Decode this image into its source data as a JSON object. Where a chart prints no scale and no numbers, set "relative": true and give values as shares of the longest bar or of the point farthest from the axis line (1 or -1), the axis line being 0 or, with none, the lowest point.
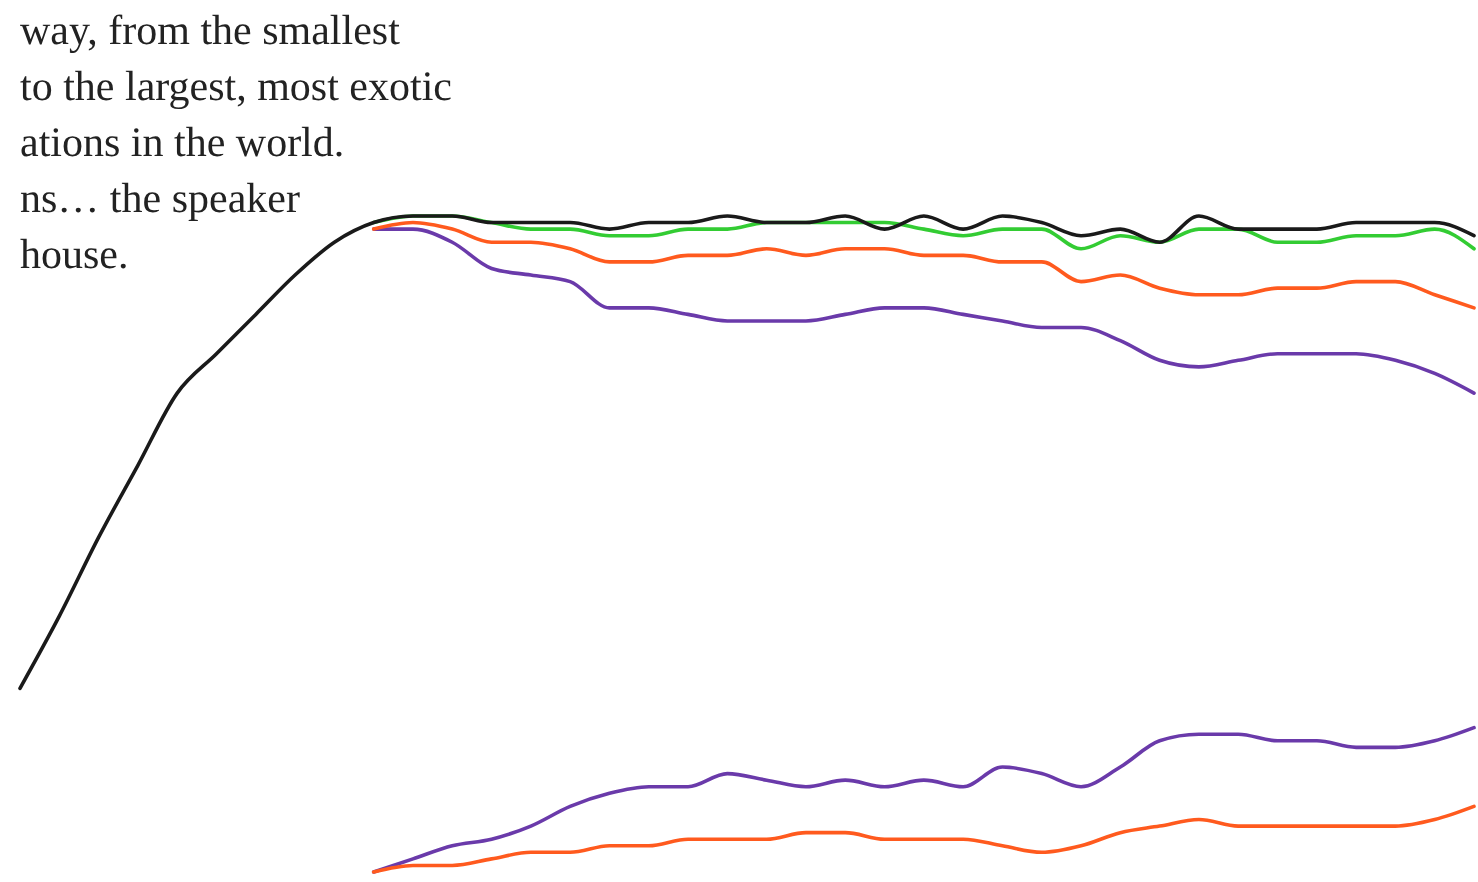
{
  "chart_data": {
    "type": "line",
    "relative": true,
    "categories": [
      null,
      null,
      null,
      null,
      null,
      null,
      null,
      null,
      null,
      null,
      null,
      null,
      null,
      null,
      null,
      null,
      null,
      null,
      null,
      null,
      null,
      null,
      null,
      null,
      null,
      null,
      null,
      null,
      null,
      null,
      null,
      null,
      null,
      null,
      null,
      null,
      null,
      null
    ],
    "annotations": [
      "way, from the smallest",
      "to the largest, most exotic",
      "ations in the world.",
      "ns… the speaker",
      "house."
    ],
    "series": [
      {
        "color": "#6a3aaa",
        "values": [
          null,
          null,
          null,
          null,
          null,
          null,
          null,
          null,
          null,
          0.98,
          0.98,
          0.96,
          0.92,
          0.91,
          0.9,
          0.86,
          0.86,
          0.85,
          0.84,
          0.84,
          0.84,
          0.85,
          0.86,
          0.86,
          0.85,
          0.84,
          0.83,
          0.83,
          0.81,
          0.78,
          0.77,
          0.78,
          0.79,
          0.79,
          0.79,
          0.78,
          0.76,
          0.73
        ]
      },
      {
        "color": "#ff5a1e",
        "values": [
          null,
          null,
          null,
          null,
          null,
          null,
          null,
          null,
          null,
          0.98,
          0.99,
          0.98,
          0.96,
          0.96,
          0.95,
          0.93,
          0.93,
          0.94,
          0.94,
          0.95,
          0.94,
          0.95,
          0.95,
          0.94,
          0.94,
          0.93,
          0.93,
          0.9,
          0.91,
          0.89,
          0.88,
          0.88,
          0.89,
          0.89,
          0.9,
          0.9,
          0.88,
          0.86
        ]
      },
      {
        "color": "#6a3aaa",
        "values": [
          null,
          null,
          null,
          null,
          null,
          null,
          null,
          null,
          null,
          0,
          0.02,
          0.04,
          0.05,
          0.07,
          0.1,
          0.12,
          0.13,
          0.13,
          0.15,
          0.14,
          0.13,
          0.14,
          0.13,
          0.14,
          0.13,
          0.16,
          0.15,
          0.13,
          0.16,
          0.2,
          0.21,
          0.21,
          0.2,
          0.2,
          0.19,
          0.19,
          0.2,
          0.22
        ]
      },
      {
        "color": "#ff5a1e",
        "values": [
          null,
          null,
          null,
          null,
          null,
          null,
          null,
          null,
          null,
          0,
          0.01,
          0.01,
          0.02,
          0.03,
          0.03,
          0.04,
          0.04,
          0.05,
          0.05,
          0.05,
          0.06,
          0.06,
          0.05,
          0.05,
          0.05,
          0.04,
          0.03,
          0.04,
          0.06,
          0.07,
          0.08,
          0.07,
          0.07,
          0.07,
          0.07,
          0.07,
          0.08,
          0.1
        ]
      },
      {
        "color": "#33cc33",
        "values": [
          null,
          null,
          null,
          null,
          null,
          null,
          null,
          null,
          null,
          0.99,
          1.0,
          1.0,
          0.99,
          0.98,
          0.98,
          0.97,
          0.97,
          0.98,
          0.98,
          0.99,
          0.99,
          0.99,
          0.99,
          0.98,
          0.97,
          0.98,
          0.98,
          0.95,
          0.97,
          0.96,
          0.98,
          0.98,
          0.96,
          0.96,
          0.97,
          0.97,
          0.98,
          0.95
        ]
      },
      {
        "color": "#1a1a1a",
        "values": [
          0.28,
          0.39,
          0.51,
          0.62,
          0.73,
          0.79,
          0.85,
          0.91,
          0.96,
          0.99,
          1.0,
          1.0,
          0.99,
          0.99,
          0.99,
          0.98,
          0.99,
          0.99,
          1.0,
          0.99,
          0.99,
          1.0,
          0.98,
          1.0,
          0.98,
          1.0,
          0.99,
          0.97,
          0.98,
          0.96,
          1.0,
          0.98,
          0.98,
          0.98,
          0.99,
          0.99,
          0.99,
          0.97
        ]
      }
    ]
  }
}
